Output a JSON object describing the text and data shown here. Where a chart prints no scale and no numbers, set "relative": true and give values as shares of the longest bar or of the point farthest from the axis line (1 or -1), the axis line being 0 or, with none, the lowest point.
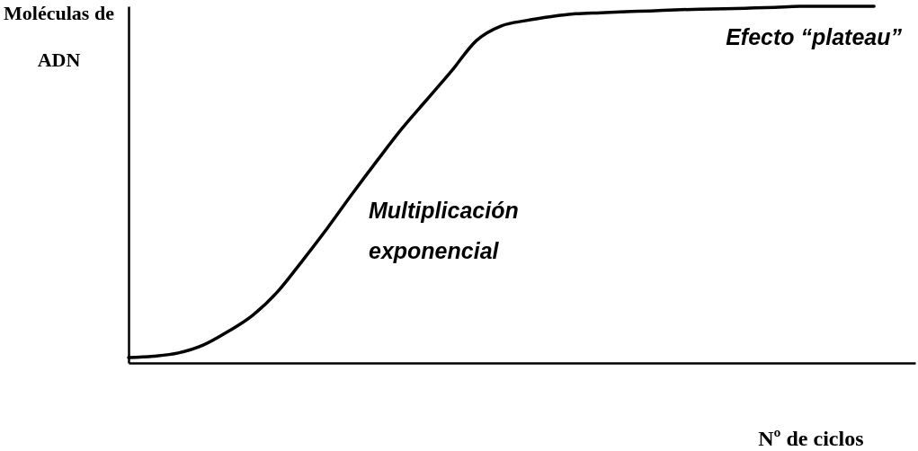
{
  "chart_data": {
    "type": "line",
    "relative": true,
    "xlabel": "Nº de ciclos",
    "ylabel": "Moléculas de ADN",
    "annotations": [
      "Multiplicación exponencial",
      "Efecto “plateau”"
    ],
    "categories": [
      null,
      null,
      null,
      null,
      null,
      null,
      null,
      null,
      null,
      null,
      null,
      null,
      null,
      null,
      null,
      null,
      null,
      null,
      null,
      null,
      null,
      null,
      null,
      null,
      null,
      null,
      null,
      null,
      null,
      null,
      null
    ],
    "series": [
      {
        "color": "#000000",
        "values": [
          0.015,
          0.019,
          0.028,
          0.05,
          0.088,
          0.134,
          0.2,
          0.287,
          0.378,
          0.474,
          0.567,
          0.657,
          0.738,
          0.819,
          0.904,
          0.945,
          0.96,
          0.971,
          0.979,
          0.982,
          0.985,
          0.987,
          0.99,
          0.992,
          0.993,
          0.995,
          0.997,
          1.0,
          1.0,
          1.0,
          1.0
        ]
      }
    ],
    "grid": false,
    "marker": "none",
    "line_style": "solid"
  }
}
